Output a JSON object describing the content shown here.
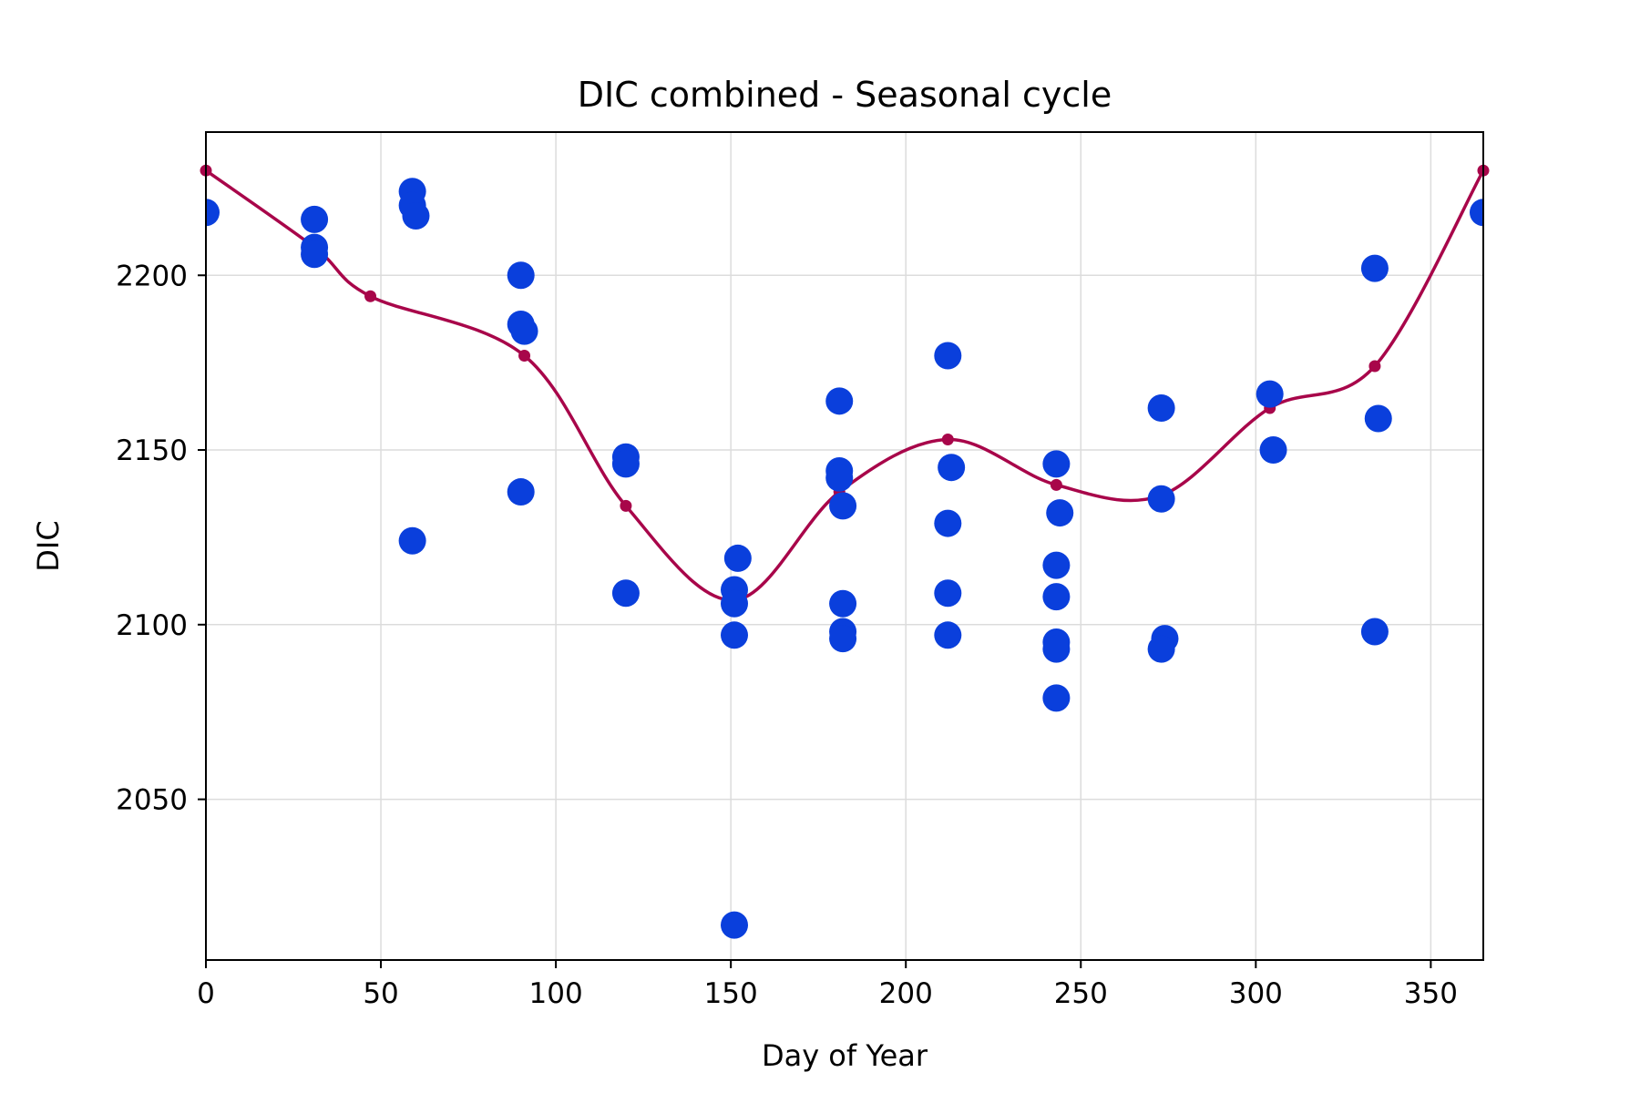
{
  "chart_data": {
    "type": "scatter",
    "title": "DIC combined - Seasonal cycle",
    "xlabel": "Day of Year",
    "ylabel": "DIC",
    "xlim": [
      0,
      365
    ],
    "ylim": [
      2004,
      2241
    ],
    "xticks": [
      0,
      50,
      100,
      150,
      200,
      250,
      300,
      350
    ],
    "yticks": [
      2050,
      2100,
      2150,
      2200
    ],
    "grid": true,
    "legend": "none",
    "colors": {
      "points": "#0a3fdc",
      "curve": "#a8064a",
      "grid": "#dcdcdc"
    },
    "series": [
      {
        "type": "scatter",
        "x": [
          0,
          31,
          31,
          31,
          59,
          59,
          59,
          60,
          90,
          90,
          90,
          91,
          120,
          120,
          120,
          151,
          151,
          152,
          151,
          151,
          181,
          181,
          181,
          182,
          182,
          182,
          182,
          212,
          213,
          212,
          212,
          212,
          243,
          244,
          243,
          243,
          243,
          243,
          243,
          273,
          273,
          274,
          273,
          304,
          305,
          334,
          335,
          334,
          365
        ],
        "y": [
          2218,
          2216,
          2208,
          2206,
          2224,
          2220,
          2124,
          2217,
          2200,
          2186,
          2138,
          2184,
          2148,
          2146,
          2109,
          2110,
          2106,
          2119,
          2097,
          2014,
          2164,
          2144,
          2142,
          2134,
          2106,
          2098,
          2096,
          2177,
          2145,
          2129,
          2109,
          2097,
          2146,
          2132,
          2117,
          2108,
          2095,
          2093,
          2079,
          2162,
          2136,
          2096,
          2093,
          2166,
          2150,
          2202,
          2159,
          2098,
          2218
        ]
      },
      {
        "type": "line",
        "smooth": true,
        "x": [
          0,
          31,
          47,
          91,
          120,
          151,
          181,
          212,
          243,
          273,
          304,
          334,
          365
        ],
        "y": [
          2230,
          2208,
          2194,
          2177,
          2134,
          2107,
          2138,
          2153,
          2140,
          2137,
          2162,
          2174,
          2230
        ]
      }
    ]
  }
}
